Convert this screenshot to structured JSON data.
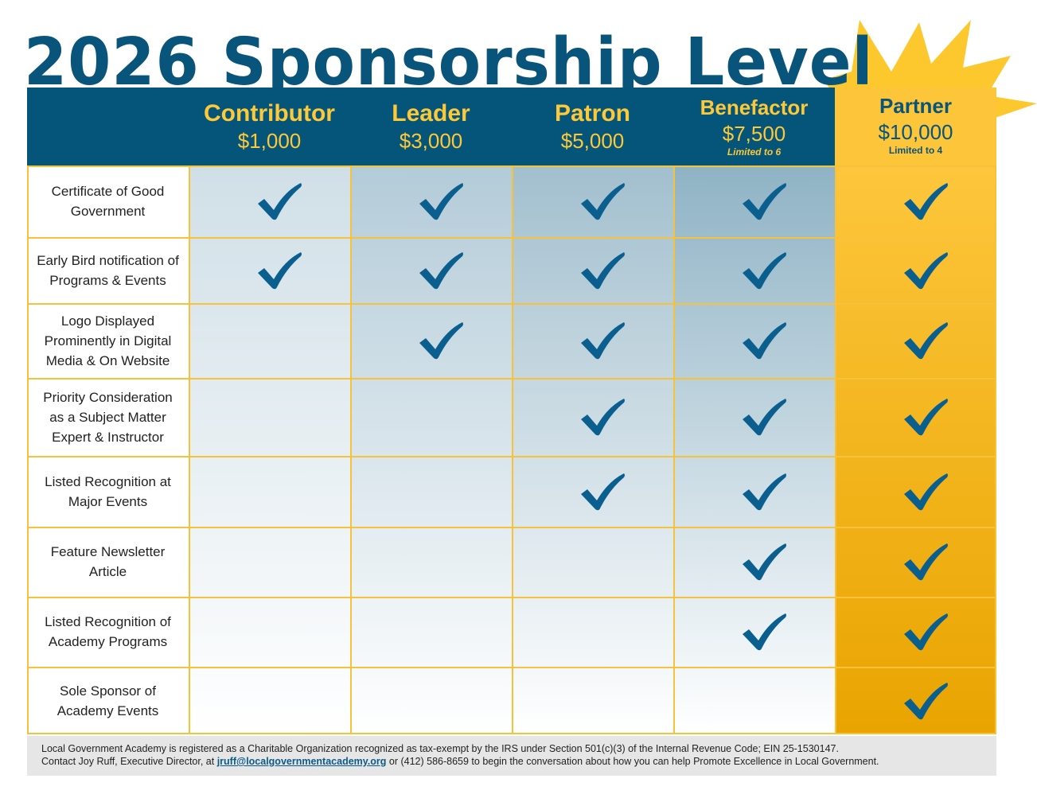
{
  "title": "2026 Sponsorship Levels",
  "levels": [
    {
      "name": "Contributor",
      "price": "$1,000",
      "limit": ""
    },
    {
      "name": "Leader",
      "price": "$3,000",
      "limit": ""
    },
    {
      "name": "Patron",
      "price": "$5,000",
      "limit": ""
    },
    {
      "name": "Benefactor",
      "price": "$7,500",
      "limit": "Limited to 6"
    },
    {
      "name": "Partner",
      "price": "$10,000",
      "limit": "Limited to 4"
    }
  ],
  "benefits": [
    {
      "label": "Certificate of Good Government",
      "included": [
        true,
        true,
        true,
        true,
        true
      ]
    },
    {
      "label": "Early Bird notification of Programs & Events",
      "included": [
        true,
        true,
        true,
        true,
        true
      ]
    },
    {
      "label": "Logo Displayed Prominently in Digital Media & On Website",
      "included": [
        false,
        true,
        true,
        true,
        true
      ]
    },
    {
      "label": "Priority Consideration as a Subject Matter Expert & Instructor",
      "included": [
        false,
        false,
        true,
        true,
        true
      ]
    },
    {
      "label": "Listed Recognition at Major Events",
      "included": [
        false,
        false,
        true,
        true,
        true
      ]
    },
    {
      "label": "Feature Newsletter Article",
      "included": [
        false,
        false,
        false,
        true,
        true
      ]
    },
    {
      "label": "Listed Recognition of Academy Programs",
      "included": [
        false,
        false,
        false,
        true,
        true
      ]
    },
    {
      "label": "Sole Sponsor of Academy Events",
      "included": [
        false,
        false,
        false,
        false,
        true
      ]
    }
  ],
  "footer": {
    "line1": "Local Government Academy is registered as a Charitable Organization recognized as tax-exempt by the IRS under Section 501(c)(3) of the Internal Revenue Code; EIN 25-1530147.",
    "line2_pre": "Contact Joy Ruff, Executive Director, at ",
    "email": "jruff@localgovernmentacademy.org",
    "line2_post": " or (412) 586-8659 to begin the conversation about how you can help Promote Excellence in Local Government."
  },
  "colors": {
    "navy": "#055479",
    "gold": "#fcc53a",
    "check": "#0b5f8f",
    "grid_line": "#f6c23b"
  }
}
